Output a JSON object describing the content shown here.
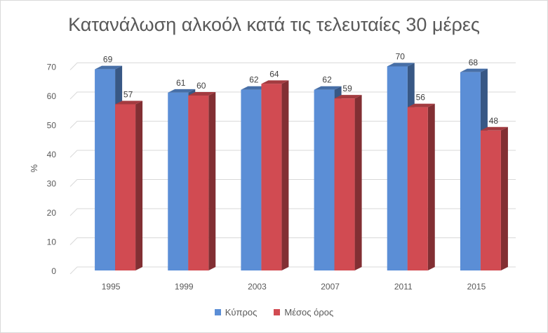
{
  "chart_data": {
    "type": "bar",
    "title": "Κατανάλωση αλκοόλ κατά τις τελευταίες 30 μέρες",
    "ylabel": "%",
    "xlabel": "",
    "categories": [
      "1995",
      "1999",
      "2003",
      "2007",
      "2011",
      "2015"
    ],
    "series": [
      {
        "name": "Κύπρος",
        "values": [
          69,
          61,
          62,
          62,
          70,
          68
        ],
        "color": "#5b8ed6"
      },
      {
        "name": "Μέσος όρος",
        "values": [
          57,
          60,
          64,
          59,
          56,
          48
        ],
        "color": "#d14b52"
      }
    ],
    "ylim": [
      0,
      70
    ],
    "yticks": [
      0,
      10,
      20,
      30,
      40,
      50,
      60,
      70
    ],
    "grid": true,
    "legend": "bottom",
    "bar_style": "3d"
  }
}
